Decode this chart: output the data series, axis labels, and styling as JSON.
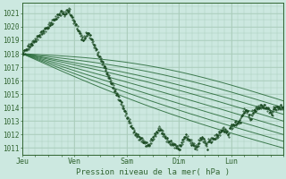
{
  "xlabel": "Pression niveau de la mer( hPa )",
  "ylim": [
    1010.5,
    1021.8
  ],
  "yticks": [
    1011,
    1012,
    1013,
    1014,
    1015,
    1016,
    1017,
    1018,
    1019,
    1020,
    1021
  ],
  "day_labels": [
    "Jeu",
    "Ven",
    "Sam",
    "Dim",
    "Lun"
  ],
  "day_positions": [
    0,
    24,
    48,
    72,
    96
  ],
  "total_hours": 120,
  "bg_color": "#cce8e0",
  "grid_color": "#aaccbb",
  "line_color": "#2d6e3e",
  "dark_line_color": "#1a4a22",
  "axis_color": "#336633",
  "figsize": [
    3.2,
    2.0
  ],
  "dpi": 100
}
